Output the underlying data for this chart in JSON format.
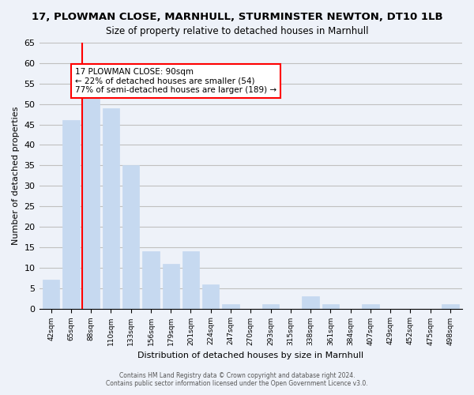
{
  "title": "17, PLOWMAN CLOSE, MARNHULL, STURMINSTER NEWTON, DT10 1LB",
  "subtitle": "Size of property relative to detached houses in Marnhull",
  "xlabel": "Distribution of detached houses by size in Marnhull",
  "ylabel": "Number of detached properties",
  "bar_labels": [
    "42sqm",
    "65sqm",
    "88sqm",
    "110sqm",
    "133sqm",
    "156sqm",
    "179sqm",
    "201sqm",
    "224sqm",
    "247sqm",
    "270sqm",
    "293sqm",
    "315sqm",
    "338sqm",
    "361sqm",
    "384sqm",
    "407sqm",
    "429sqm",
    "452sqm",
    "475sqm",
    "498sqm"
  ],
  "bar_values": [
    7,
    46,
    55,
    49,
    35,
    14,
    11,
    14,
    6,
    1,
    0,
    1,
    0,
    3,
    1,
    0,
    1,
    0,
    0,
    0,
    1
  ],
  "bar_color": "#c6d9f0",
  "highlight_bar_index": 2,
  "highlight_line_color": "#ff0000",
  "ylim": [
    0,
    65
  ],
  "yticks": [
    0,
    5,
    10,
    15,
    20,
    25,
    30,
    35,
    40,
    45,
    50,
    55,
    60,
    65
  ],
  "annotation_title": "17 PLOWMAN CLOSE: 90sqm",
  "annotation_line1": "← 22% of detached houses are smaller (54)",
  "annotation_line2": "77% of semi-detached houses are larger (189) →",
  "annotation_box_color": "#ffffff",
  "annotation_box_edgecolor": "#ff0000",
  "footer_line1": "Contains HM Land Registry data © Crown copyright and database right 2024.",
  "footer_line2": "Contains public sector information licensed under the Open Government Licence v3.0.",
  "grid_color": "#c0c0c0",
  "background_color": "#eef2f9"
}
